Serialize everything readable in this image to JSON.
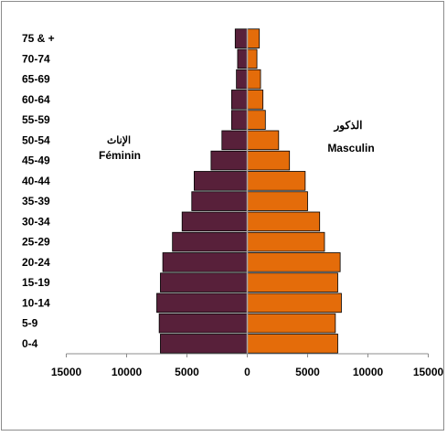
{
  "chart_data": {
    "type": "bar",
    "orientation": "horizontal",
    "subtype": "population-pyramid",
    "categories": [
      "0-4",
      "5-9",
      "10-14",
      "15-19",
      "20-24",
      "25-29",
      "30-34",
      "35-39",
      "40-44",
      "45-49",
      "50-54",
      "55-59",
      "60-64",
      "65-69",
      "70-74",
      "75 & +"
    ],
    "series": [
      {
        "name_ar": "الإناث",
        "name": "Féminin",
        "side": "left",
        "color": "#58203a",
        "values": [
          7200,
          7300,
          7500,
          7200,
          7000,
          6200,
          5400,
          4600,
          4400,
          3000,
          2100,
          1300,
          1300,
          900,
          800,
          1000
        ]
      },
      {
        "name_ar": "الذكور",
        "name": "Masculin",
        "side": "right",
        "color": "#e46c0a",
        "values": [
          7500,
          7300,
          7800,
          7500,
          7700,
          6400,
          6000,
          5000,
          4800,
          3500,
          2600,
          1500,
          1300,
          1100,
          800,
          1000
        ]
      }
    ],
    "xlim": [
      -15000,
      15000
    ],
    "xticks": [
      -15000,
      -10000,
      -5000,
      0,
      5000,
      10000,
      15000
    ],
    "xtick_labels": [
      "15000",
      "10000",
      "5000",
      "0",
      "5000",
      "10000",
      "15000"
    ],
    "grid": false,
    "legend": "inline-labels"
  }
}
